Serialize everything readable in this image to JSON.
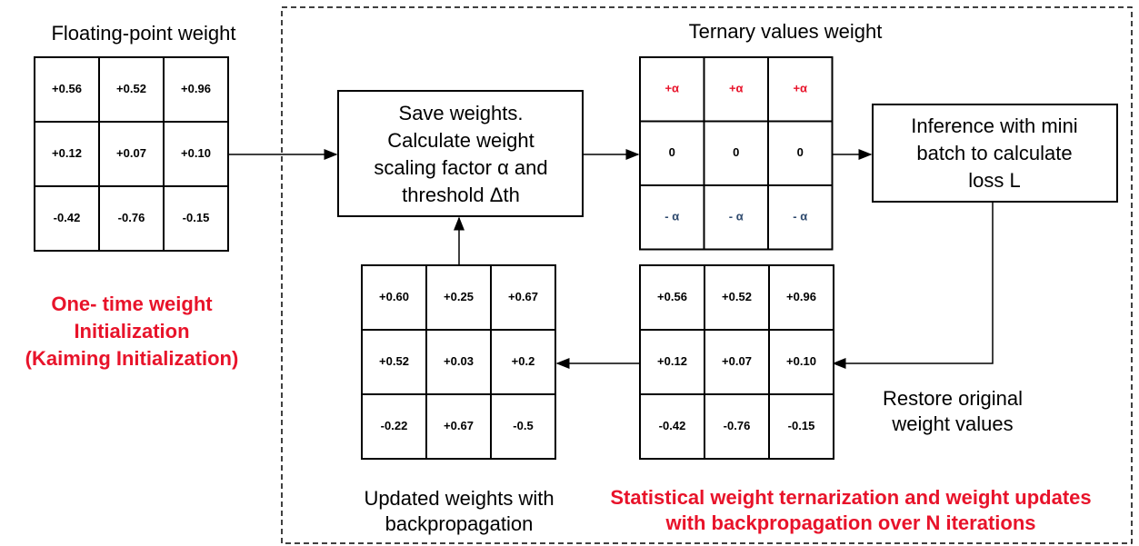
{
  "floating_point": {
    "title": "Floating-point weight",
    "cells": [
      [
        "+0.56",
        "+0.52",
        "+0.96"
      ],
      [
        "+0.12",
        "+0.07",
        "+0.10"
      ],
      [
        "-0.42",
        "-0.76",
        "-0.15"
      ]
    ]
  },
  "init_note": {
    "lines": [
      "One- time weight",
      "Initialization",
      "(Kaiming Initialization)"
    ]
  },
  "ternary": {
    "title": "Ternary values weight",
    "cells": [
      [
        "+α",
        "+α",
        "+α"
      ],
      [
        "0",
        "0",
        "0"
      ],
      [
        "- α",
        "- α",
        "- α"
      ]
    ]
  },
  "save_box": {
    "lines": [
      "Save weights.",
      "Calculate  weight",
      "scaling factor α and",
      "threshold Δth"
    ]
  },
  "inference_box": {
    "lines": [
      "Inference with mini",
      "batch to calculate",
      "loss L"
    ]
  },
  "restored": {
    "label": [
      "Restore original",
      "weight values"
    ],
    "cells": [
      [
        "+0.56",
        "+0.52",
        "+0.96"
      ],
      [
        "+0.12",
        "+0.07",
        "+0.10"
      ],
      [
        "-0.42",
        "-0.76",
        "-0.15"
      ]
    ]
  },
  "updated": {
    "label": [
      "Updated weights with",
      "backpropagation"
    ],
    "cells": [
      [
        "+0.60",
        "+0.25",
        "+0.67"
      ],
      [
        "+0.52",
        "+0.03",
        "+0.2"
      ],
      [
        "-0.22",
        "+0.67",
        "-0.5"
      ]
    ]
  },
  "loop_note": {
    "lines": [
      "Statistical weight ternarization and weight updates",
      "with backpropagation over N iterations"
    ]
  }
}
